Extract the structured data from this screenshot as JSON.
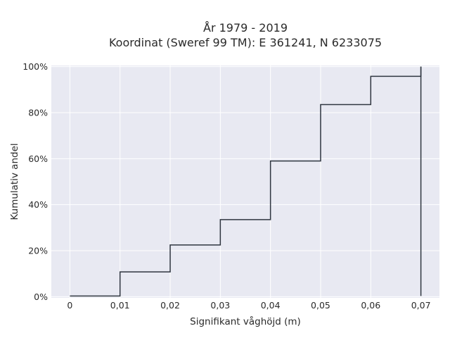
{
  "chart_data": {
    "type": "line",
    "line_shape": "step",
    "title_line1": "År 1979 - 2019",
    "title_line2": "Koordinat (Sweref 99 TM): E 361241, N 6233075",
    "xlabel": "Signifikant våghöjd (m)",
    "ylabel": "Kumulativ andel",
    "xlim": [
      -0.0037,
      0.0737
    ],
    "ylim": [
      -0.005,
      1.005
    ],
    "x_ticks": [
      0,
      0.01,
      0.02,
      0.03,
      0.04,
      0.05,
      0.06,
      0.07
    ],
    "x_tick_labels": [
      "0",
      "0,01",
      "0,02",
      "0,03",
      "0,04",
      "0,05",
      "0,06",
      "0,07"
    ],
    "y_ticks": [
      0,
      0.2,
      0.4,
      0.6,
      0.8,
      1.0
    ],
    "y_tick_labels": [
      "0%",
      "20%",
      "40%",
      "60%",
      "80%",
      "100%"
    ],
    "grid": true,
    "plot_bgcolor": "#e8e9f2",
    "line_color": "#2f3640",
    "series": [
      {
        "x": [
          0,
          0.01,
          0.02,
          0.03,
          0.04,
          0.05,
          0.06,
          0.07
        ],
        "y": [
          0.003,
          0.108,
          0.225,
          0.335,
          0.59,
          0.835,
          0.958,
          1.0
        ]
      }
    ]
  }
}
